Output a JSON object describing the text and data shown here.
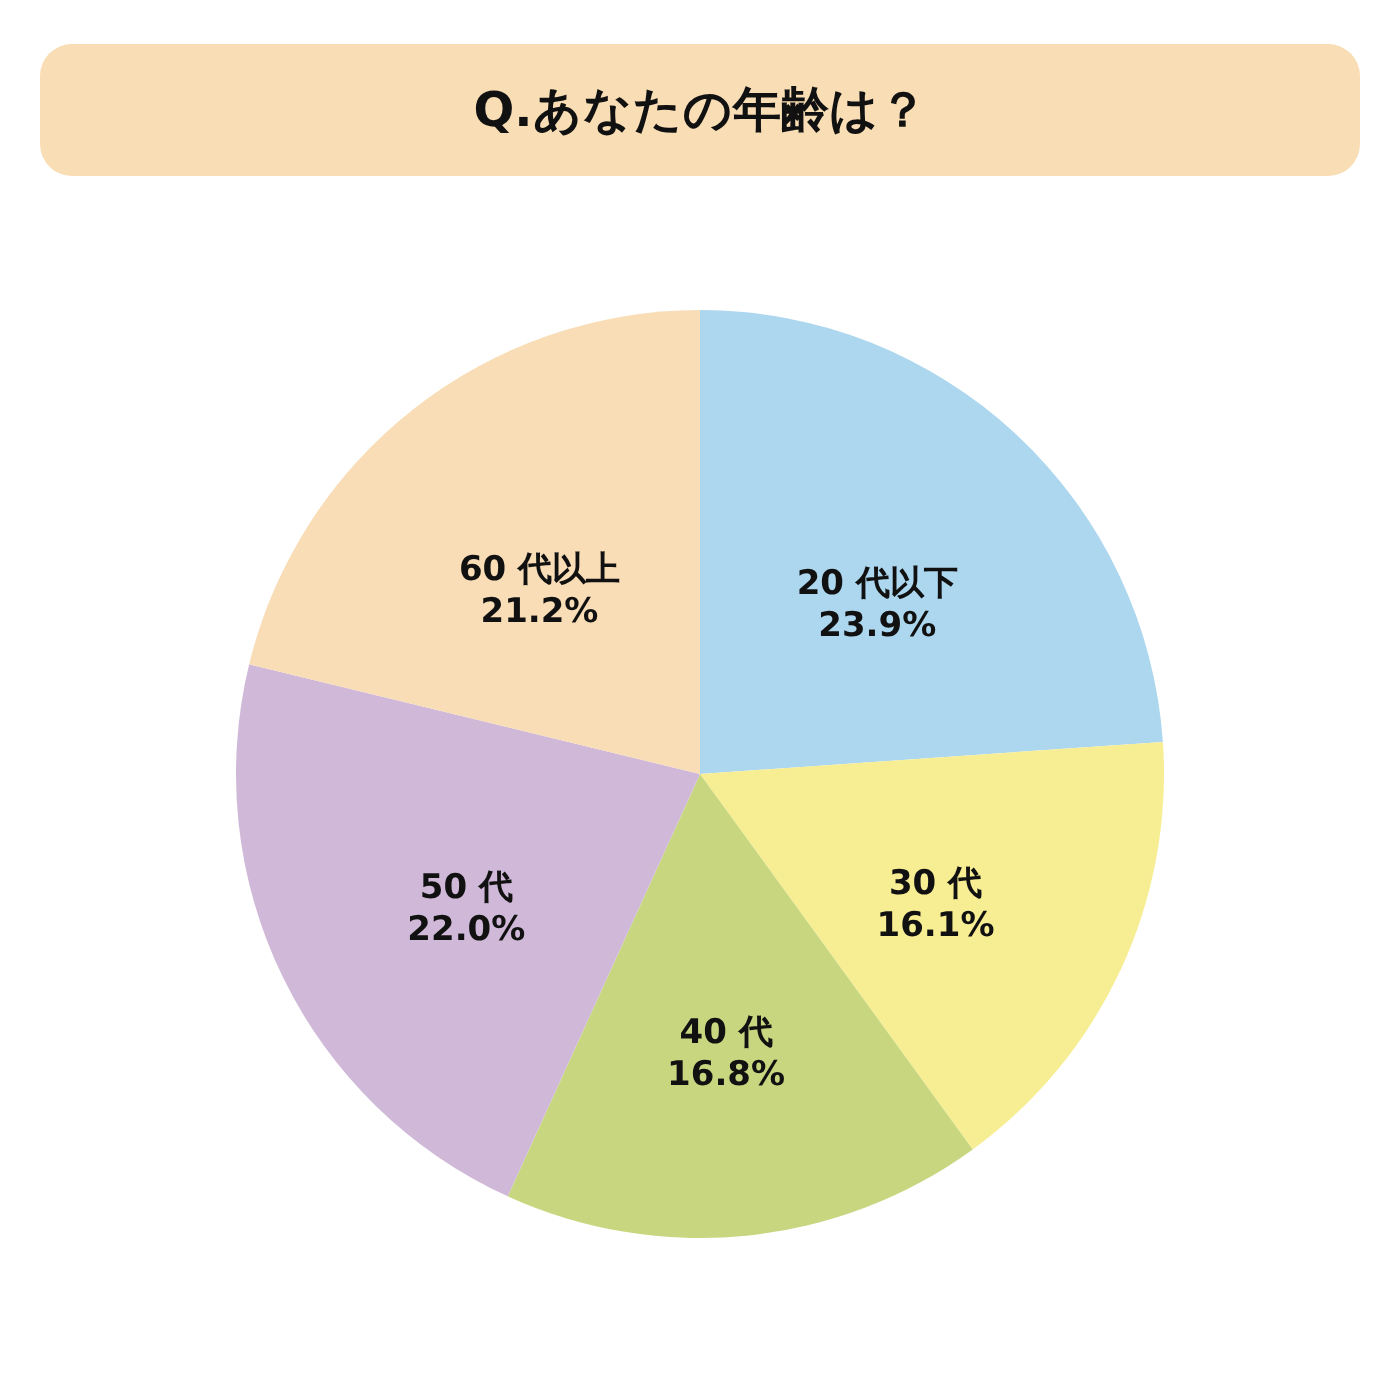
{
  "chart_data": {
    "type": "pie",
    "title": "Q.あなたの年齢は？",
    "categories": [
      "20 代以下",
      "30 代",
      "40 代",
      "50 代",
      "60 代以上"
    ],
    "values": [
      23.9,
      16.1,
      16.8,
      22.0,
      21.2
    ],
    "value_labels": [
      "23.9%",
      "16.1%",
      "16.8%",
      "22.0%",
      "21.2%"
    ],
    "colors": [
      "#acd7ef",
      "#f7ee94",
      "#c8d77f",
      "#d0b9d8",
      "#f8ddb7"
    ]
  }
}
